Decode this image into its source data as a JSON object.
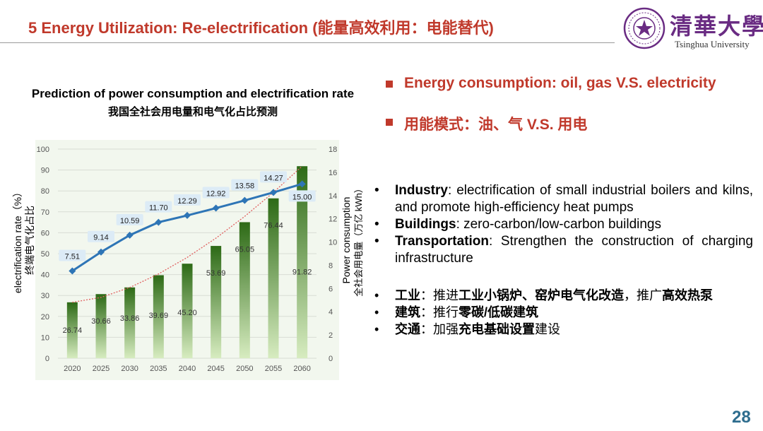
{
  "header": {
    "title": "5 Energy Utilization: Re-electrification (能量高效利用：电能替代)",
    "logo_cn": "清華大學",
    "logo_en": "Tsinghua University"
  },
  "chart_title": "Prediction of power consumption and electrification rate",
  "chart_subtitle": "我国全社会用电量和电气化占比预测",
  "chart_data": {
    "type": "bar",
    "categories": [
      "2020",
      "2025",
      "2030",
      "2035",
      "2040",
      "2045",
      "2050",
      "2055",
      "2060"
    ],
    "series": [
      {
        "name": "electrification rate（%） 终端电气化占比",
        "kind": "bar",
        "axis": "left",
        "values": [
          26.74,
          30.66,
          33.86,
          39.69,
          45.2,
          53.69,
          65.05,
          76.44,
          91.82
        ]
      },
      {
        "name": "Power consumption 全社会用电量（万亿 kWh）",
        "kind": "line",
        "axis": "right",
        "values": [
          7.51,
          9.14,
          10.59,
          11.7,
          12.29,
          12.92,
          13.58,
          14.27,
          15.0
        ]
      }
    ],
    "bar_labels": [
      "26.74",
      "30.66",
      "33.86",
      "39.69",
      "45.20",
      "53.69",
      "65.05",
      "76.44",
      "91.82"
    ],
    "line_labels": [
      "7.51",
      "9.14",
      "10.59",
      "11.70",
      "12.29",
      "12.92",
      "13.58",
      "14.27",
      "15.00"
    ],
    "left_ticks": [
      "0",
      "10",
      "20",
      "30",
      "40",
      "50",
      "60",
      "70",
      "80",
      "90",
      "100"
    ],
    "right_ticks": [
      "0",
      "2",
      "4",
      "6",
      "8",
      "10",
      "12",
      "14",
      "16",
      "18"
    ],
    "ylim_left": [
      0,
      100
    ],
    "ylim_right": [
      0,
      18
    ],
    "ylabel_left": "electrification rate（%）",
    "ylabel_left_cn": "终端电气化占比",
    "ylabel_right": "Power consumption",
    "ylabel_right_cn": "全社会用电量（万亿 kWh）",
    "trendline": "dotted",
    "grid": true,
    "colors": {
      "bar_top": "#2d6a16",
      "bar_bottom": "#d7ecc0",
      "line": "#2e75b6",
      "label_box": "#dcebf6",
      "trend": "#e06060",
      "plot_bg": "#f2f7ee"
    }
  },
  "right_panel": {
    "bullets": [
      "Energy consumption: oil, gas V.S. electricity",
      "用能模式：油、气 V.S. 用电"
    ],
    "english_items": [
      {
        "bold": "Industry",
        "text": ": electrification of small industrial boilers and kilns, and promote high-efficiency heat pumps"
      },
      {
        "bold": "Buildings",
        "text": ": zero-carbon/low-carbon buildings"
      },
      {
        "bold": "Transportation",
        "text": ": Strengthen the construction of charging infrastructure"
      }
    ],
    "chinese_items": [
      {
        "b1": "工业",
        "t1": "：推进",
        "b2": "工业小锅炉、窑炉电气化改造",
        "t2": "，推广",
        "b3": "高效热泵"
      },
      {
        "b1": "建筑",
        "t1": "：推行",
        "b2": "零碳/低碳建筑",
        "t2": "",
        "b3": ""
      },
      {
        "b1": "交通",
        "t1": "：加强",
        "b2": "充电基础设置",
        "t2": "建设",
        "b3": ""
      }
    ],
    "bullet_char": "•"
  },
  "page_number": "28"
}
